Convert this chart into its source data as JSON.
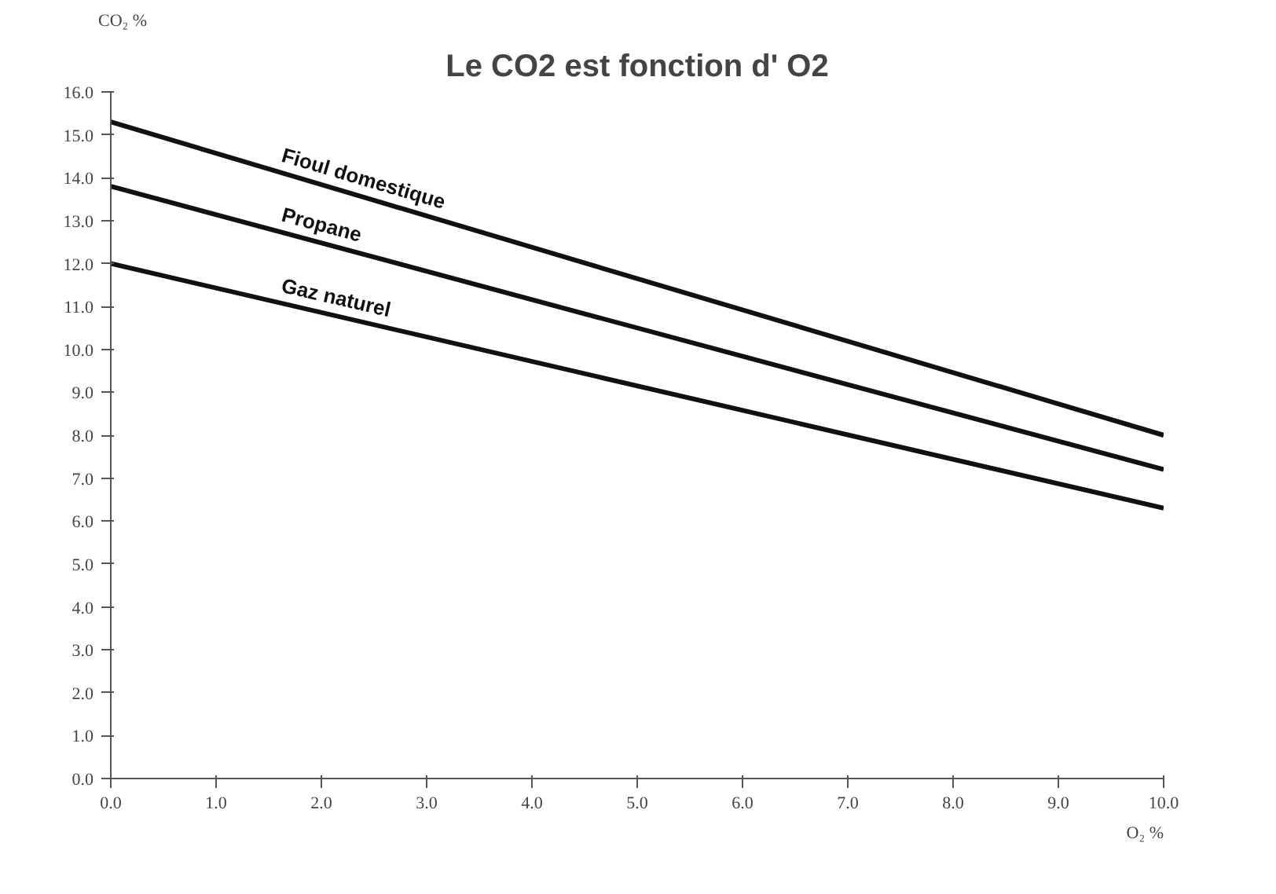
{
  "chart_data": {
    "type": "line",
    "title": "Le CO2 est fonction d' O2",
    "xlabel": "O₂ %",
    "ylabel": "CO₂ %",
    "xlim": [
      0,
      10
    ],
    "ylim": [
      0,
      16
    ],
    "xticks": [
      {
        "value": 0,
        "label": "0.0"
      },
      {
        "value": 1,
        "label": "1.0"
      },
      {
        "value": 2,
        "label": "2.0"
      },
      {
        "value": 3,
        "label": "3.0"
      },
      {
        "value": 4,
        "label": "4.0"
      },
      {
        "value": 5,
        "label": "5.0"
      },
      {
        "value": 6,
        "label": "6.0"
      },
      {
        "value": 7,
        "label": "7.0"
      },
      {
        "value": 8,
        "label": "8.0"
      },
      {
        "value": 9,
        "label": "9.0"
      },
      {
        "value": 10,
        "label": "10.0"
      }
    ],
    "yticks": [
      {
        "value": 0,
        "label": "0.0"
      },
      {
        "value": 1,
        "label": "1.0"
      },
      {
        "value": 2,
        "label": "2.0"
      },
      {
        "value": 3,
        "label": "3.0"
      },
      {
        "value": 4,
        "label": "4.0"
      },
      {
        "value": 5,
        "label": "5.0"
      },
      {
        "value": 6,
        "label": "6.0"
      },
      {
        "value": 7,
        "label": "7.0"
      },
      {
        "value": 8,
        "label": "8.0"
      },
      {
        "value": 9,
        "label": "9.0"
      },
      {
        "value": 10,
        "label": "10.0"
      },
      {
        "value": 11,
        "label": "11.0"
      },
      {
        "value": 12,
        "label": "12.0"
      },
      {
        "value": 13,
        "label": "13.0"
      },
      {
        "value": 14,
        "label": "14.0"
      },
      {
        "value": 15,
        "label": "15.0"
      },
      {
        "value": 16,
        "label": "16.0"
      }
    ],
    "x": [
      0,
      10
    ],
    "series": [
      {
        "name": "Fioul domestique",
        "color": "#111111",
        "values": [
          15.3,
          8.0
        ]
      },
      {
        "name": "Propane",
        "color": "#111111",
        "values": [
          13.8,
          7.2
        ]
      },
      {
        "name": "Gaz naturel",
        "color": "#111111",
        "values": [
          12.0,
          6.3
        ]
      }
    ],
    "grid": false,
    "marker": "none",
    "line_style": "solid"
  }
}
